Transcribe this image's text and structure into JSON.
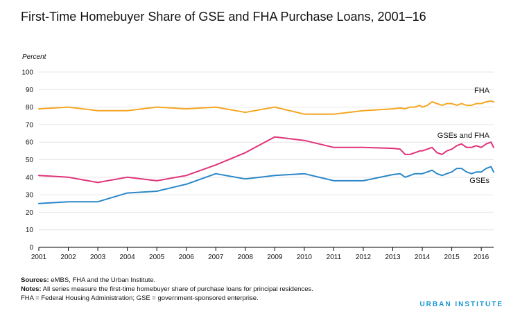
{
  "title": "First-Time Homebuyer Share of GSE and FHA Purchase Loans, 2001–16",
  "footnotes": {
    "sources_label": "Sources:",
    "sources_text": " eMBS, FHA and the Urban Institute.",
    "notes_label": "Notes:",
    "notes_text": " All series measure the first-time homebuyer share of purchase loans for principal residences.",
    "abbrev_text": "FHA = Federal Housing Administration; GSE = government-sponsored enterprise."
  },
  "brand": "URBAN INSTITUTE",
  "colors": {
    "FHA": "#f5a623",
    "GSEs and FHA": "#e0337a",
    "GSEs": "#2b87c8",
    "grid": "#e6e6e6",
    "axis": "#000000"
  },
  "chart_data": {
    "type": "line",
    "title": "First-Time Homebuyer Share of GSE and FHA Purchase Loans, 2001–16",
    "xlabel": "",
    "ylabel": "Percent",
    "xlim": [
      2001,
      2016.42
    ],
    "ylim": [
      0,
      100
    ],
    "x_ticks": [
      "2001",
      "2002",
      "2003",
      "2004",
      "2005",
      "2006",
      "2007",
      "2008",
      "2009",
      "2010",
      "2011",
      "2012",
      "2013",
      "2014",
      "2015",
      "2016"
    ],
    "y_ticks": [
      "0",
      "10",
      "20",
      "30",
      "40",
      "50",
      "60",
      "70",
      "80",
      "90",
      "100"
    ],
    "grid": true,
    "legend": "labels placed at line ends (right)",
    "series": [
      {
        "name": "FHA",
        "points": [
          [
            2001,
            79
          ],
          [
            2002,
            80
          ],
          [
            2003,
            78
          ],
          [
            2004,
            78
          ],
          [
            2005,
            80
          ],
          [
            2006,
            79
          ],
          [
            2007,
            80
          ],
          [
            2008,
            77
          ],
          [
            2009,
            80
          ],
          [
            2010,
            76
          ],
          [
            2011,
            76
          ],
          [
            2012,
            78
          ],
          [
            2013,
            79
          ],
          [
            2013.25,
            79.5
          ],
          [
            2013.42,
            79
          ],
          [
            2013.58,
            80
          ],
          [
            2013.75,
            80
          ],
          [
            2013.92,
            81
          ],
          [
            2014.0,
            80
          ],
          [
            2014.17,
            81
          ],
          [
            2014.33,
            83
          ],
          [
            2014.5,
            82
          ],
          [
            2014.67,
            81
          ],
          [
            2014.83,
            82
          ],
          [
            2015.0,
            82
          ],
          [
            2015.17,
            81
          ],
          [
            2015.33,
            82
          ],
          [
            2015.5,
            81
          ],
          [
            2015.67,
            81
          ],
          [
            2015.83,
            82
          ],
          [
            2016.0,
            82
          ],
          [
            2016.17,
            83
          ],
          [
            2016.33,
            83.5
          ],
          [
            2016.42,
            83
          ]
        ]
      },
      {
        "name": "GSEs and FHA",
        "points": [
          [
            2001,
            41
          ],
          [
            2002,
            40
          ],
          [
            2003,
            37
          ],
          [
            2004,
            40
          ],
          [
            2005,
            38
          ],
          [
            2006,
            41
          ],
          [
            2007,
            47
          ],
          [
            2008,
            54
          ],
          [
            2009,
            63
          ],
          [
            2010,
            61
          ],
          [
            2011,
            57
          ],
          [
            2012,
            57
          ],
          [
            2013,
            56.5
          ],
          [
            2013.25,
            56
          ],
          [
            2013.42,
            53
          ],
          [
            2013.58,
            53
          ],
          [
            2013.75,
            54
          ],
          [
            2013.92,
            55
          ],
          [
            2014.0,
            55
          ],
          [
            2014.17,
            56
          ],
          [
            2014.33,
            57
          ],
          [
            2014.5,
            54
          ],
          [
            2014.67,
            53
          ],
          [
            2014.83,
            55
          ],
          [
            2015.0,
            56
          ],
          [
            2015.17,
            58
          ],
          [
            2015.33,
            59
          ],
          [
            2015.5,
            57
          ],
          [
            2015.67,
            57
          ],
          [
            2015.83,
            58
          ],
          [
            2016.0,
            57
          ],
          [
            2016.17,
            59
          ],
          [
            2016.33,
            60
          ],
          [
            2016.42,
            57
          ]
        ]
      },
      {
        "name": "GSEs",
        "points": [
          [
            2001,
            25
          ],
          [
            2002,
            26
          ],
          [
            2003,
            26
          ],
          [
            2004,
            31
          ],
          [
            2005,
            32
          ],
          [
            2006,
            36
          ],
          [
            2007,
            42
          ],
          [
            2008,
            39
          ],
          [
            2009,
            41
          ],
          [
            2010,
            42
          ],
          [
            2011,
            38
          ],
          [
            2012,
            38
          ],
          [
            2013,
            41.5
          ],
          [
            2013.25,
            42
          ],
          [
            2013.42,
            40
          ],
          [
            2013.58,
            41
          ],
          [
            2013.75,
            42
          ],
          [
            2013.92,
            42
          ],
          [
            2014.0,
            42
          ],
          [
            2014.17,
            43
          ],
          [
            2014.33,
            44
          ],
          [
            2014.5,
            42
          ],
          [
            2014.67,
            41
          ],
          [
            2014.83,
            42
          ],
          [
            2015.0,
            43
          ],
          [
            2015.17,
            45
          ],
          [
            2015.33,
            45
          ],
          [
            2015.5,
            43
          ],
          [
            2015.67,
            42
          ],
          [
            2015.83,
            43
          ],
          [
            2016.0,
            43
          ],
          [
            2016.17,
            45
          ],
          [
            2016.33,
            46
          ],
          [
            2016.42,
            43
          ]
        ]
      }
    ]
  }
}
